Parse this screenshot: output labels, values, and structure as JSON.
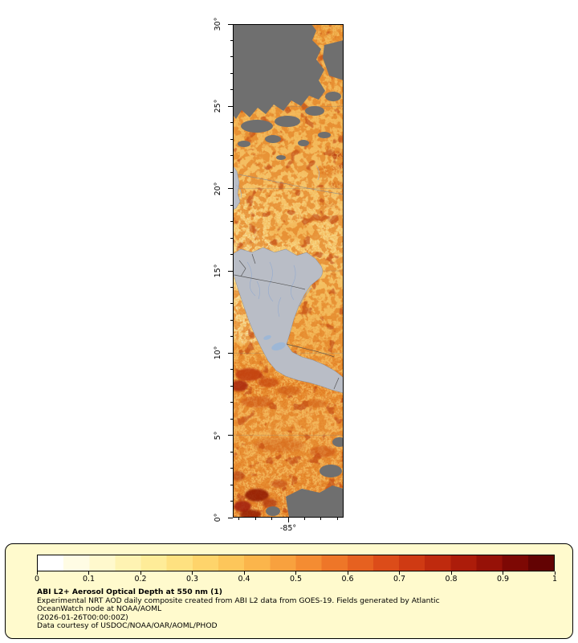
{
  "colors": {
    "background": "#ffffff",
    "land": "#b9bdc6",
    "no_data_gray": "#6f6f6f",
    "legend_background": "#fffacd",
    "axis": "#000000"
  },
  "map": {
    "y_axis": {
      "major_ticks": [
        {
          "value": 30,
          "label": "30°"
        },
        {
          "value": 25,
          "label": "25°"
        },
        {
          "value": 20,
          "label": "20°"
        },
        {
          "value": 15,
          "label": "15°"
        },
        {
          "value": 10,
          "label": "10°"
        },
        {
          "value": 5,
          "label": "5°"
        },
        {
          "value": 0,
          "label": "0°"
        }
      ]
    },
    "x_axis": {
      "major_ticks": [
        {
          "value": -85,
          "label": "-85°"
        }
      ]
    }
  },
  "legend": {
    "colorbar": {
      "tick_labels": [
        "0",
        "0.1",
        "0.2",
        "0.3",
        "0.4",
        "0.5",
        "0.6",
        "0.7",
        "0.8",
        "0.9",
        "1"
      ],
      "colors": [
        "#ffffff",
        "#fffce4",
        "#fff9cd",
        "#fef3b2",
        "#feec98",
        "#fee180",
        "#fed46b",
        "#fdc65a",
        "#fbb54b",
        "#f8a13e",
        "#f48c32",
        "#ee7628",
        "#e66120",
        "#dc4c19",
        "#cf3a13",
        "#bf2a0e",
        "#ac1c0a",
        "#961107",
        "#7d0804",
        "#630303"
      ]
    },
    "title": "ABI L2+ Aerosol Optical Depth at 550 nm (1)",
    "description_line1": "Experimental NRT AOD daily composite created from ABI L2 data from GOES-19. Fields generated by Atlantic",
    "description_line2": "OceanWatch node at NOAA/AOML",
    "timestamp": "(2026-01-26T00:00:00Z)",
    "credit": "Data courtesy of USDOC/NOAA/OAR/AOML/PHOD"
  },
  "chart_data": {
    "type": "heatmap",
    "title": "ABI L2+ Aerosol Optical Depth at 550 nm (1)",
    "variable": "Aerosol Optical Depth at 550 nm",
    "colorbar_range": [
      0,
      1
    ],
    "colorbar_ticks": [
      0,
      0.1,
      0.2,
      0.3,
      0.4,
      0.5,
      0.6,
      0.7,
      0.8,
      0.9,
      1
    ],
    "lat_ticks_deg": [
      0,
      5,
      10,
      15,
      20,
      25,
      30
    ],
    "lon_ticks_deg": [
      -85
    ],
    "legend_position": "bottom",
    "notes": "Satellite AOD composite strip map; gray = land, dark gray = no data, yellow-to-dark-red = AOD 0 to 1"
  }
}
